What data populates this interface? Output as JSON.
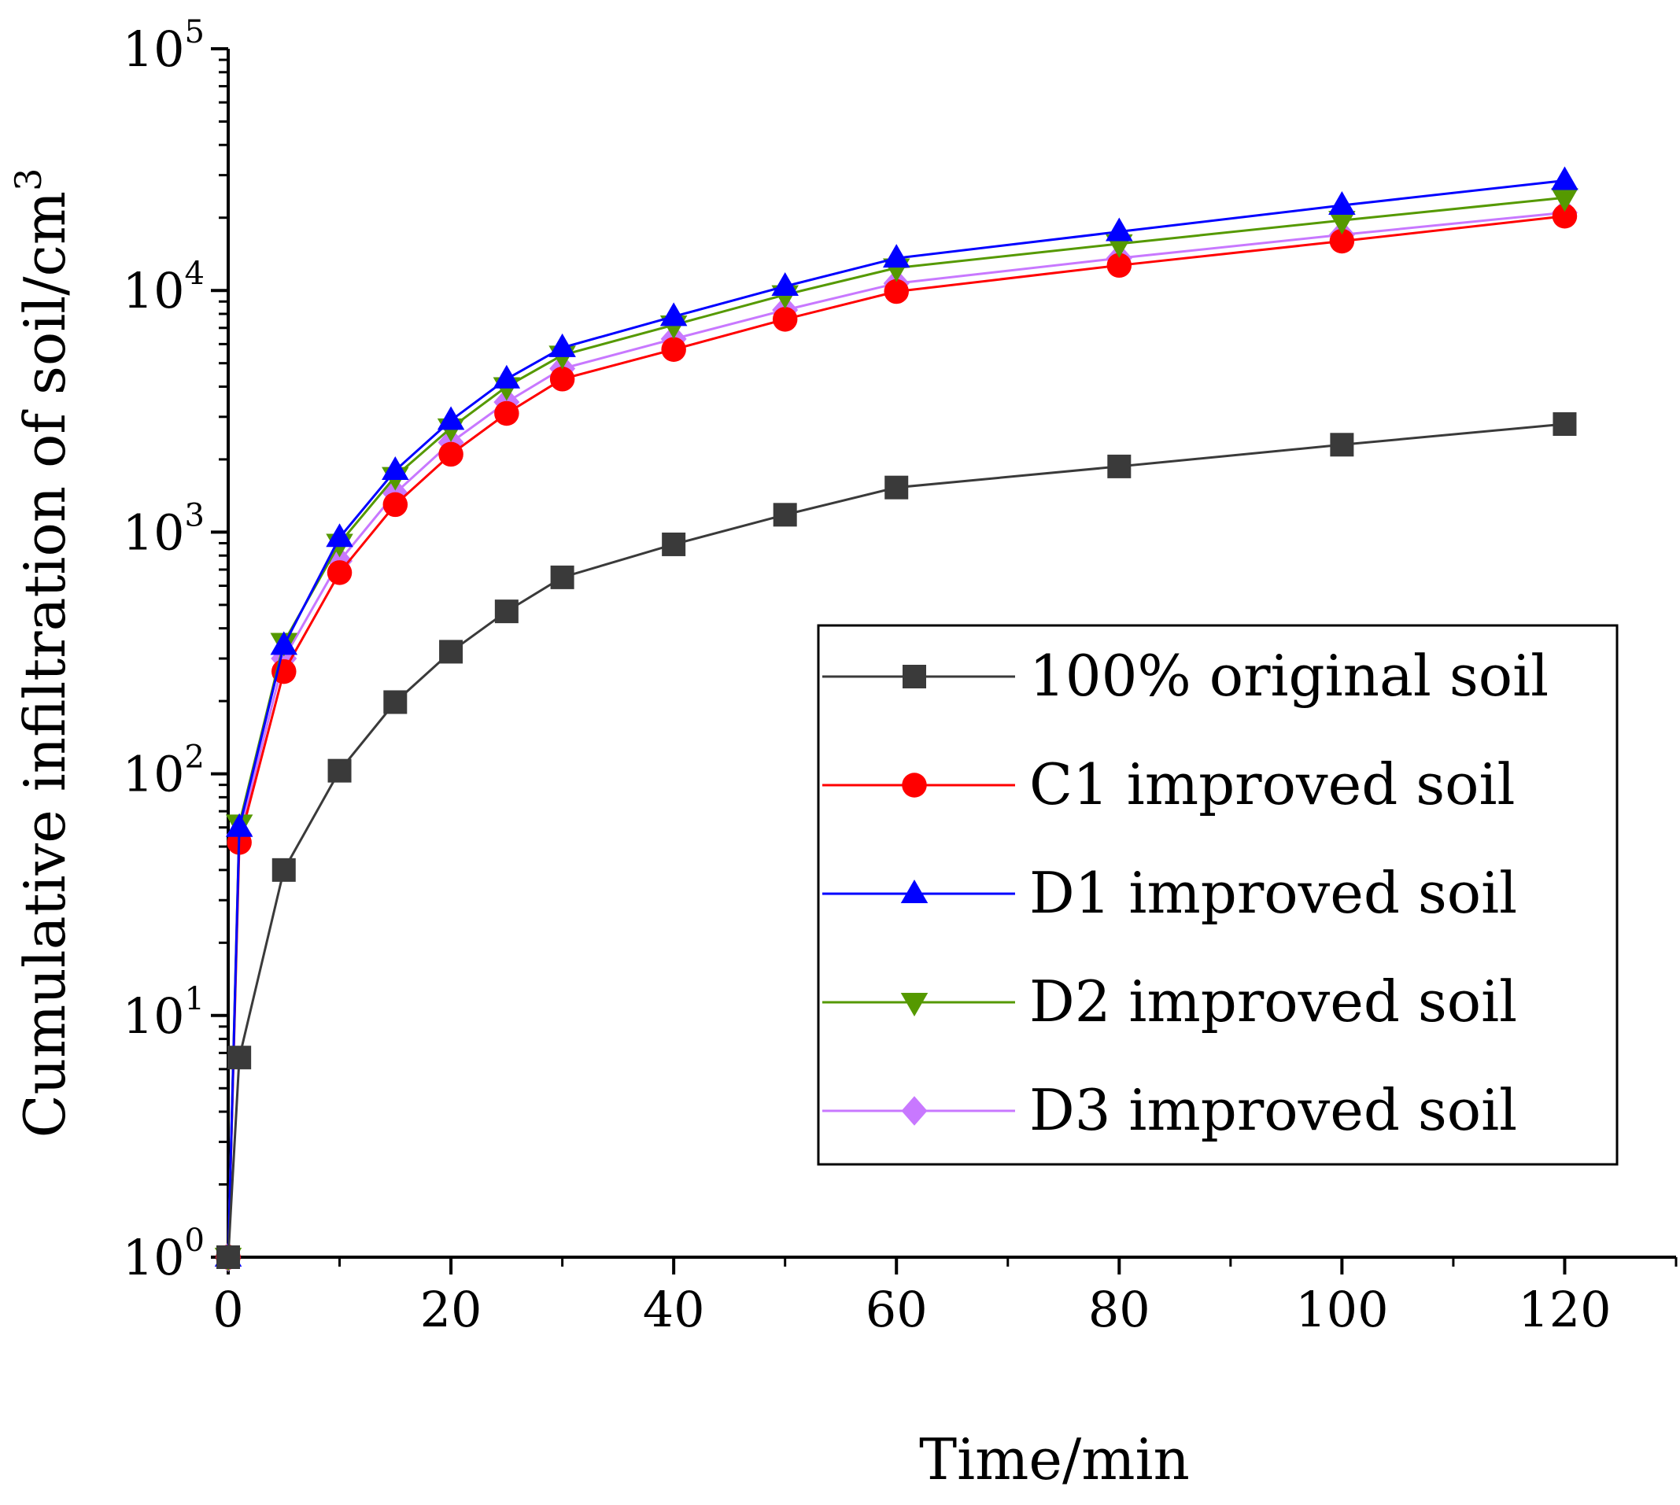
{
  "chart_data": {
    "type": "line",
    "title": "",
    "xlabel": "Time/min",
    "ylabel": "Cumulative infiltration of soil/cm",
    "ylabel_sup": "3",
    "yscale": "log",
    "xlim": [
      0,
      130
    ],
    "ylim": [
      1,
      100000
    ],
    "x_ticks": [
      "0",
      "20",
      "40",
      "60",
      "80",
      "100",
      "120"
    ],
    "x_tick_values": [
      0,
      20,
      40,
      60,
      80,
      100,
      120
    ],
    "y_ticks": [
      {
        "base": "10",
        "exp": "0",
        "value": 1
      },
      {
        "base": "10",
        "exp": "1",
        "value": 10
      },
      {
        "base": "10",
        "exp": "2",
        "value": 100
      },
      {
        "base": "10",
        "exp": "3",
        "value": 1000
      },
      {
        "base": "10",
        "exp": "4",
        "value": 10000
      },
      {
        "base": "10",
        "exp": "5",
        "value": 100000
      }
    ],
    "legend_position": "center-right",
    "x": [
      0,
      1,
      5,
      10,
      15,
      20,
      25,
      30,
      40,
      50,
      60,
      80,
      100,
      120
    ],
    "series": [
      {
        "name": "100% original soil",
        "color": "#3a3a3a",
        "marker": "square",
        "values": [
          1,
          6.7,
          40,
          103,
          198,
          320,
          470,
          650,
          890,
          1180,
          1530,
          1870,
          2300,
          2800
        ]
      },
      {
        "name": "C1 improved soil",
        "color": "#ff0000",
        "marker": "circle",
        "values": [
          1,
          52,
          265,
          680,
          1300,
          2100,
          3100,
          4300,
          5700,
          7600,
          9900,
          12700,
          16000,
          20300
        ]
      },
      {
        "name": "D1 improved soil",
        "color": "#0000ff",
        "marker": "triangle-up",
        "values": [
          1,
          60,
          340,
          950,
          1800,
          2900,
          4300,
          5800,
          7800,
          10400,
          13600,
          17500,
          22500,
          28500
        ]
      },
      {
        "name": "D2 improved soil",
        "color": "#559900",
        "marker": "triangle-down",
        "values": [
          1,
          62,
          350,
          900,
          1700,
          2700,
          4000,
          5400,
          7200,
          9600,
          12400,
          15600,
          19500,
          24200
        ]
      },
      {
        "name": "D3 improved soil",
        "color": "#c878ff",
        "marker": "diamond",
        "values": [
          1,
          56,
          300,
          760,
          1450,
          2350,
          3450,
          4750,
          6300,
          8300,
          10700,
          13600,
          17000,
          21000
        ]
      }
    ]
  }
}
